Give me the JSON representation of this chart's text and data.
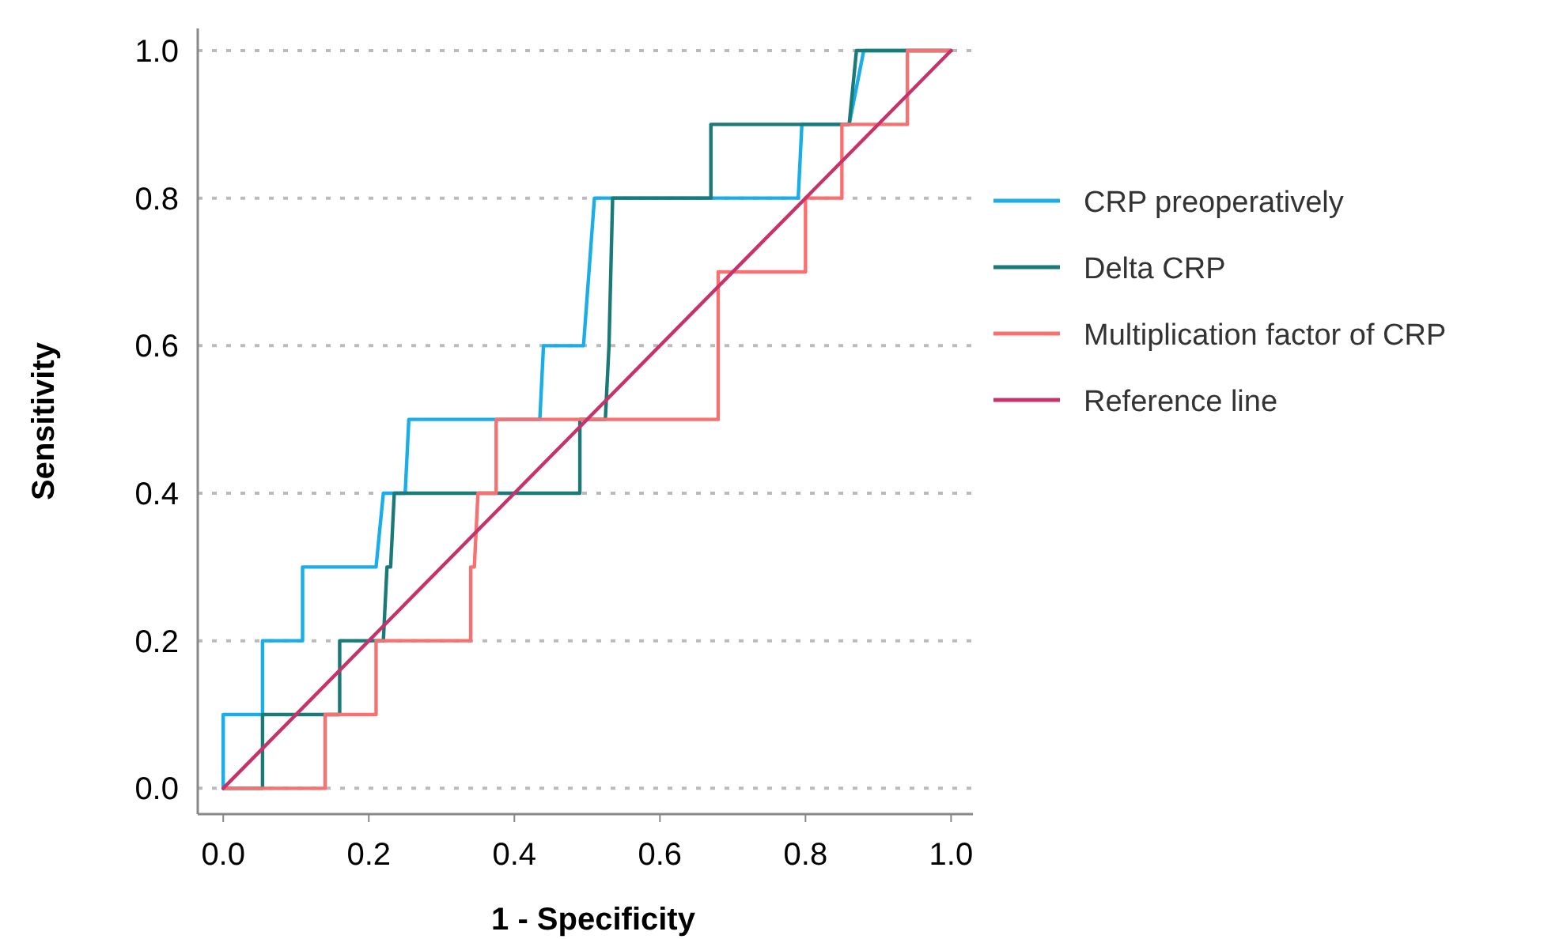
{
  "chart_data": {
    "type": "line",
    "xlabel": "1 - Specificity",
    "ylabel": "Sensitivity",
    "xlim": [
      -0.035,
      1.03
    ],
    "ylim": [
      -0.035,
      1.03
    ],
    "xticks": [
      {
        "value": 0,
        "label": "0.0"
      },
      {
        "value": 0.2,
        "label": "0.2"
      },
      {
        "value": 0.4,
        "label": "0.4"
      },
      {
        "value": 0.6,
        "label": "0.6"
      },
      {
        "value": 0.8,
        "label": "0.8"
      },
      {
        "value": 1,
        "label": "1.0"
      }
    ],
    "yticks": [
      {
        "value": 0,
        "label": "0.0"
      },
      {
        "value": 0.2,
        "label": "0.2"
      },
      {
        "value": 0.4,
        "label": "0.4"
      },
      {
        "value": 0.6,
        "label": "0.6"
      },
      {
        "value": 0.8,
        "label": "0.8"
      },
      {
        "value": 1,
        "label": "1.0"
      }
    ],
    "grid": "y",
    "legend": "right",
    "line_style": "solid",
    "series": [
      {
        "name": "CRP preoperatively",
        "color": "#1aaee8",
        "x": [
          0,
          0,
          0.054,
          0.054,
          0.109,
          0.109,
          0.21,
          0.22,
          0.25,
          0.255,
          0.435,
          0.44,
          0.495,
          0.51,
          0.79,
          0.795,
          0.86,
          0.88,
          1
        ],
        "values": [
          0,
          0.1,
          0.1,
          0.2,
          0.2,
          0.3,
          0.3,
          0.4,
          0.4,
          0.5,
          0.5,
          0.6,
          0.6,
          0.8,
          0.8,
          0.9,
          0.9,
          1,
          1
        ]
      },
      {
        "name": "Delta CRP",
        "color": "#1a7a78",
        "x": [
          0,
          0.054,
          0.054,
          0.16,
          0.16,
          0.22,
          0.225,
          0.23,
          0.235,
          0.49,
          0.49,
          0.525,
          0.53,
          0.535,
          0.67,
          0.67,
          0.86,
          0.87,
          1
        ],
        "values": [
          0,
          0,
          0.1,
          0.1,
          0.2,
          0.2,
          0.3,
          0.3,
          0.4,
          0.4,
          0.5,
          0.5,
          0.6,
          0.8,
          0.8,
          0.9,
          0.9,
          1,
          1
        ]
      },
      {
        "name": "Multiplication factor of CRP",
        "color": "#f87070",
        "x": [
          0,
          0.14,
          0.14,
          0.21,
          0.21,
          0.34,
          0.34,
          0.345,
          0.35,
          0.375,
          0.375,
          0.68,
          0.68,
          0.8,
          0.8,
          0.85,
          0.85,
          0.94,
          0.94,
          1
        ],
        "values": [
          0,
          0,
          0.1,
          0.1,
          0.2,
          0.2,
          0.3,
          0.3,
          0.4,
          0.4,
          0.5,
          0.5,
          0.7,
          0.7,
          0.8,
          0.8,
          0.9,
          0.9,
          1,
          1
        ]
      },
      {
        "name": "Reference line",
        "color": "#c8326a",
        "x": [
          0,
          1
        ],
        "values": [
          0,
          1
        ]
      }
    ]
  }
}
